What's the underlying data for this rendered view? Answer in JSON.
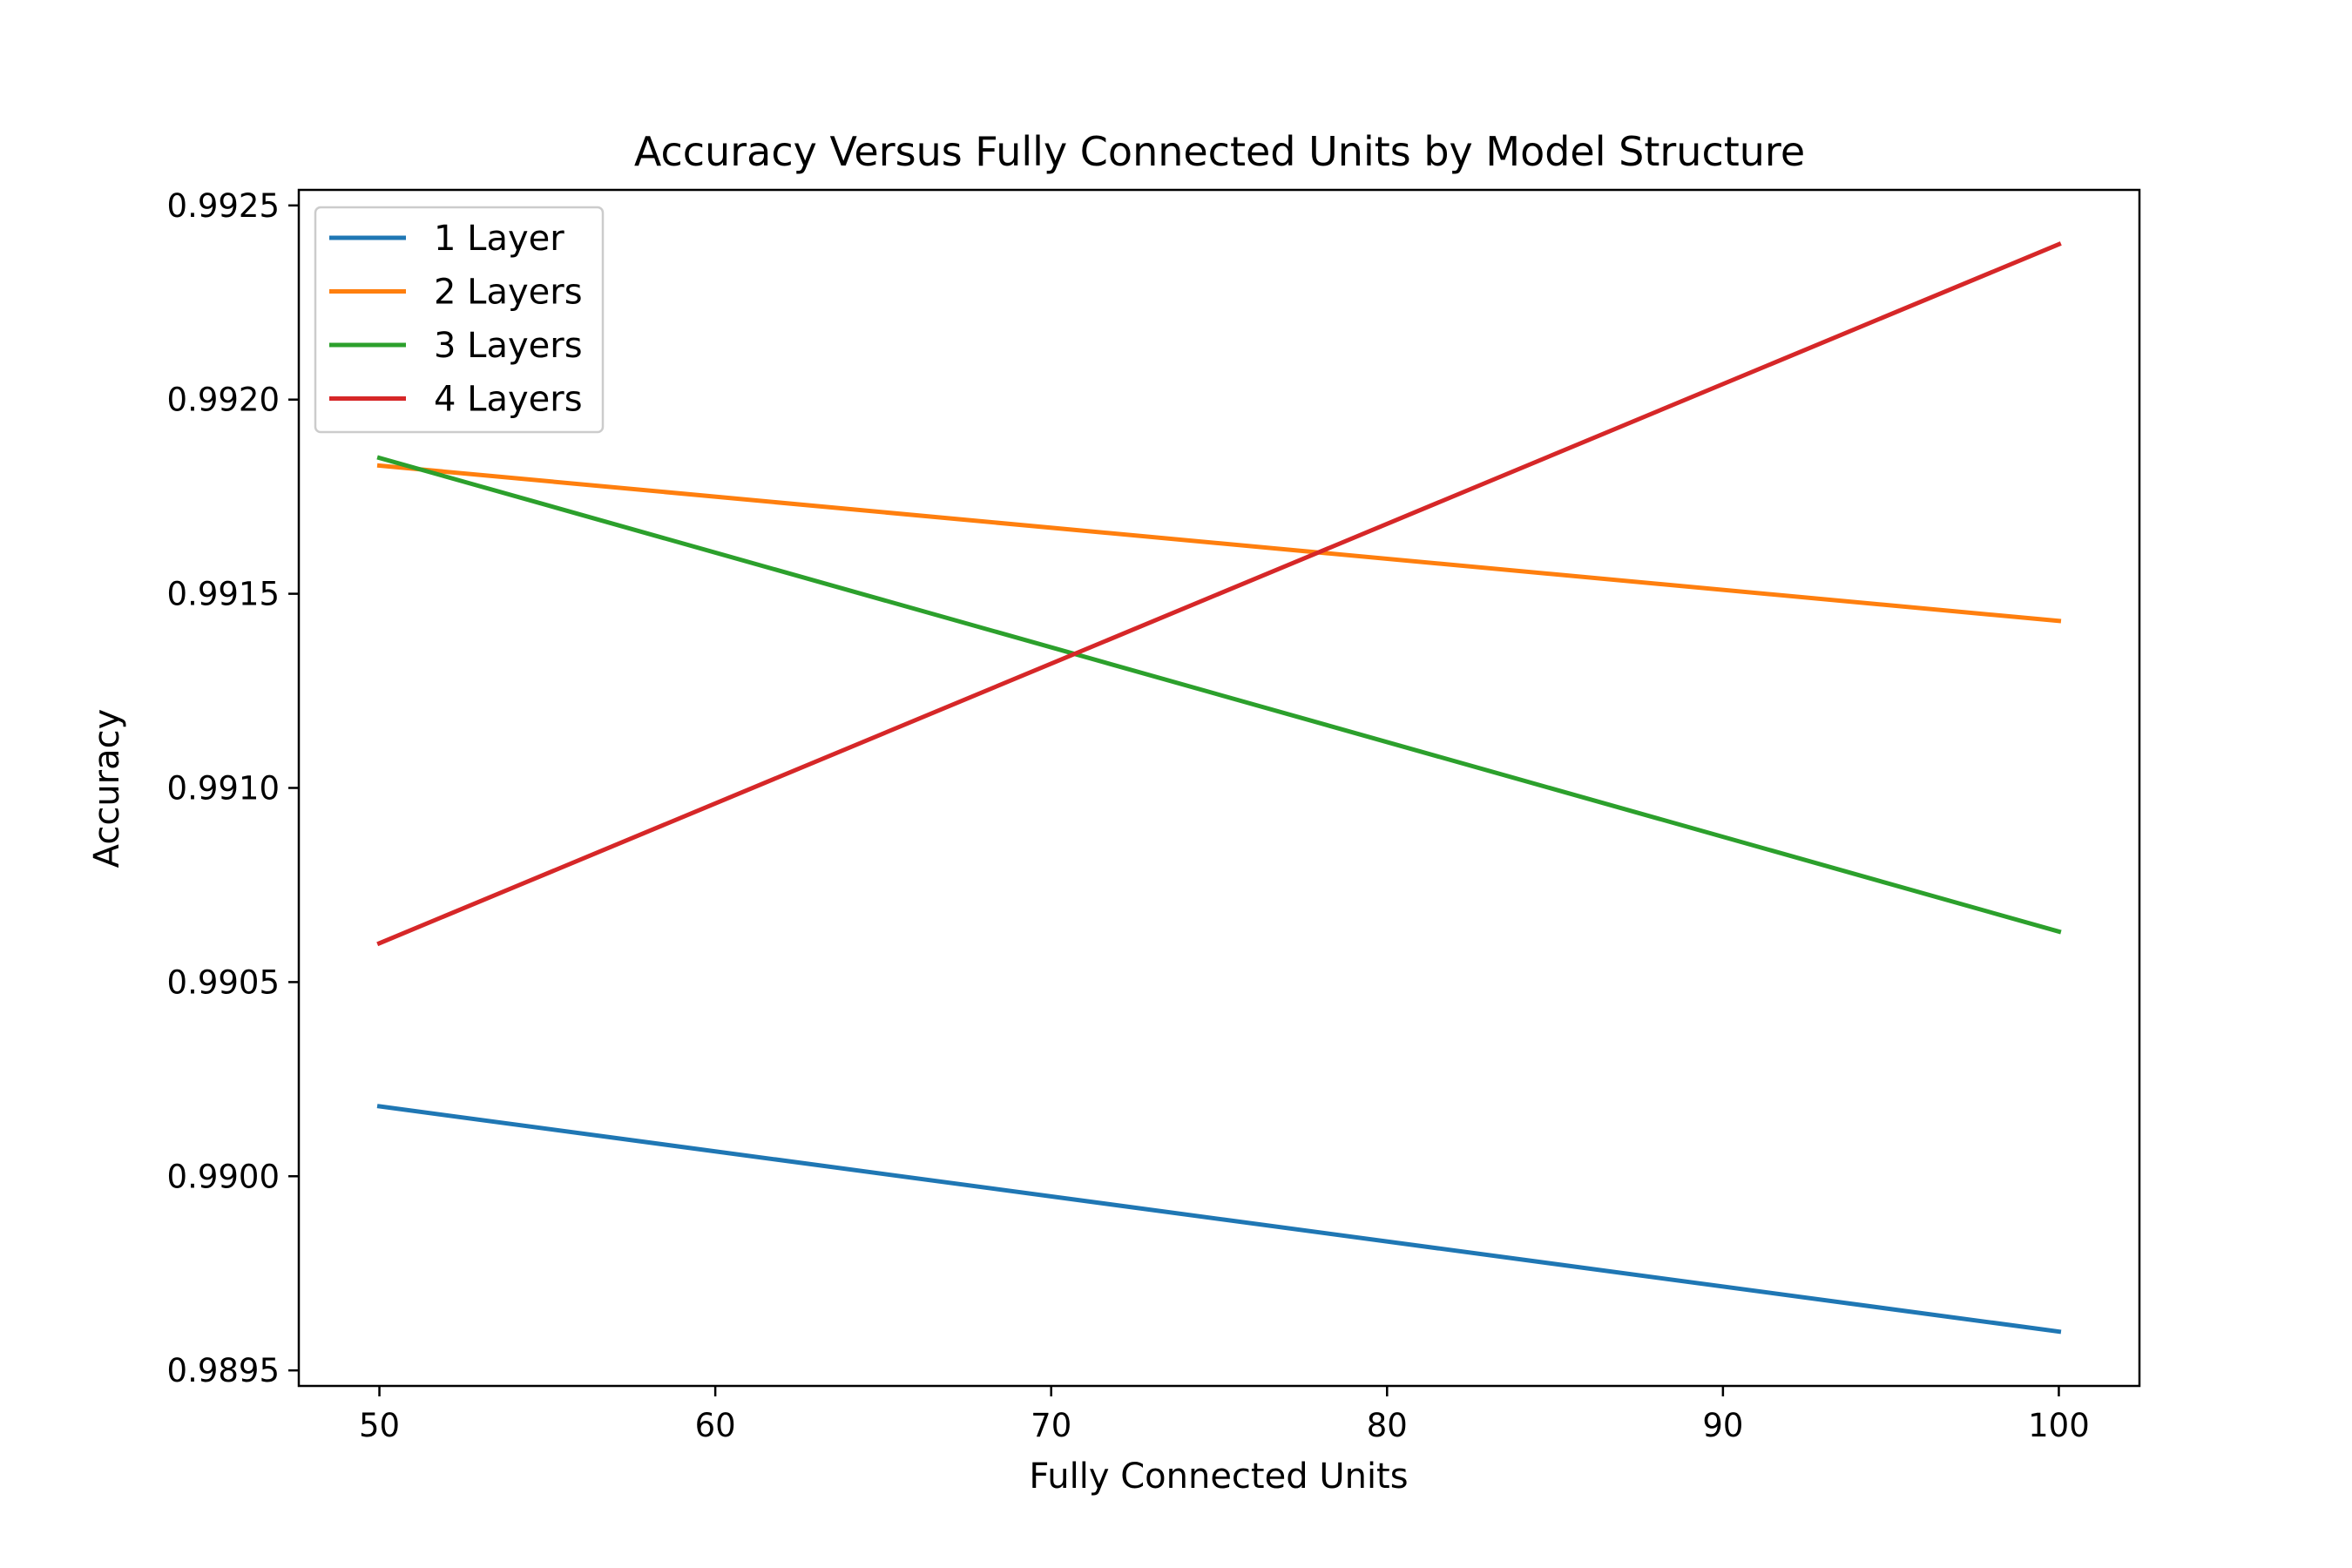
{
  "chart_data": {
    "type": "line",
    "title": "Accuracy Versus Fully Connected Units by Model Structure",
    "xlabel": "Fully Connected Units",
    "ylabel": "Accuracy",
    "x": [
      50,
      100
    ],
    "xlim": [
      47.6,
      102.4
    ],
    "ylim": [
      0.98946,
      0.99254
    ],
    "xticks": [
      50,
      60,
      70,
      80,
      90,
      100
    ],
    "yticks": [
      "0.9895",
      "0.9900",
      "0.9905",
      "0.9910",
      "0.9915",
      "0.9920",
      "0.9925"
    ],
    "grid": false,
    "legend_position": "top-left",
    "series": [
      {
        "name": "1 Layer",
        "color": "#1f77b4",
        "values": [
          0.99018,
          0.9896
        ]
      },
      {
        "name": "2 Layers",
        "color": "#ff7f0e",
        "values": [
          0.99183,
          0.99143
        ]
      },
      {
        "name": "3 Layers",
        "color": "#2ca02c",
        "values": [
          0.99185,
          0.99063
        ]
      },
      {
        "name": "4 Layers",
        "color": "#d62728",
        "values": [
          0.9906,
          0.9924
        ]
      }
    ]
  }
}
